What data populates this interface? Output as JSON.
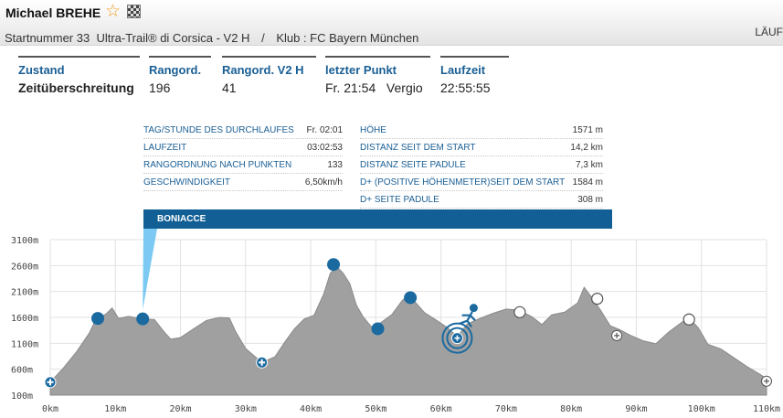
{
  "header": {
    "runner_name": "Michael BREHE",
    "favorite_icon": "star-icon",
    "checkered_flag_icon": "checkered-flag-icon",
    "bib": "Startnummer 33",
    "race": "Ultra-Trail® di Corsica - V2 H",
    "separator": "/",
    "club": "Klub : FC Bayern München",
    "lauf_tab": "LÄUF"
  },
  "summary": [
    {
      "label": "Zustand",
      "value": "Zeitüberschreitung"
    },
    {
      "label": "Rangord.",
      "value": "196"
    },
    {
      "label": "Rangord. V2 H",
      "value": "41"
    },
    {
      "label": "letzter Punkt",
      "value": "Fr. 21:54   Vergio"
    },
    {
      "label": "Laufzeit",
      "value": "22:55:55"
    }
  ],
  "tooltip": {
    "place": "BONIACCE",
    "left_rows": [
      {
        "k": "TAG/STUNDE DES DURCHLAUFES",
        "v": "Fr. 02:01"
      },
      {
        "k": "LAUFZEIT",
        "v": "03:02:53"
      },
      {
        "k": "RANGORDNUNG NACH PUNKTEN",
        "v": "133"
      },
      {
        "k": "GESCHWINDIGKEIT",
        "v": "6,50km/h"
      }
    ],
    "right_rows": [
      {
        "k": "HÖHE",
        "v": "1571 m"
      },
      {
        "k": "DISTANZ SEIT DEM START",
        "v": "14,2 km"
      },
      {
        "k": "DISTANZ SEITE PADULE",
        "v": "7,3 km"
      },
      {
        "k": "D+ (POSITIVE HÖHENMETER)SEIT DEM START",
        "v": "1584 m"
      },
      {
        "k": "D+ SEITE PADULE",
        "v": "308 m"
      }
    ]
  },
  "chart_data": {
    "type": "area",
    "title": "",
    "xlabel": "",
    "ylabel": "",
    "xlim": [
      0,
      110
    ],
    "ylim": [
      100,
      3100
    ],
    "grid": true,
    "colors": {
      "profile": "#a0a0a0",
      "passed": "#1a6aa0",
      "upcoming": "#ffffff",
      "runner": "#1a6aa0"
    },
    "y_tick_labels": [
      "3100m",
      "2600m",
      "2100m",
      "1600m",
      "1100m",
      "600m",
      "100m"
    ],
    "y_tick_values": [
      3100,
      2600,
      2100,
      1600,
      1100,
      600,
      100
    ],
    "x_tick_labels": [
      "0km",
      "10km",
      "20km",
      "30km",
      "40km",
      "50km",
      "60km",
      "70km",
      "80km",
      "90km",
      "100km",
      "110km"
    ],
    "x_tick_values": [
      0,
      10,
      20,
      30,
      40,
      50,
      60,
      70,
      80,
      90,
      100,
      110
    ],
    "profile": [
      [
        0,
        350
      ],
      [
        2,
        620
      ],
      [
        4,
        930
      ],
      [
        6,
        1300
      ],
      [
        7,
        1560
      ],
      [
        8.5,
        1660
      ],
      [
        9.5,
        1780
      ],
      [
        10.5,
        1580
      ],
      [
        12,
        1620
      ],
      [
        14.2,
        1571
      ],
      [
        16,
        1560
      ],
      [
        17.5,
        1320
      ],
      [
        18.5,
        1180
      ],
      [
        20,
        1210
      ],
      [
        22,
        1380
      ],
      [
        24,
        1540
      ],
      [
        26,
        1600
      ],
      [
        27.5,
        1590
      ],
      [
        28.5,
        1320
      ],
      [
        30,
        1000
      ],
      [
        32.5,
        730
      ],
      [
        34.5,
        840
      ],
      [
        36,
        1120
      ],
      [
        37.5,
        1380
      ],
      [
        39,
        1570
      ],
      [
        40.5,
        1640
      ],
      [
        42,
        2050
      ],
      [
        43,
        2450
      ],
      [
        44,
        2580
      ],
      [
        45,
        2450
      ],
      [
        46,
        2250
      ],
      [
        47,
        1840
      ],
      [
        48,
        1620
      ],
      [
        49.5,
        1390
      ],
      [
        51,
        1520
      ],
      [
        52.5,
        1660
      ],
      [
        54,
        1920
      ],
      [
        55,
        2040
      ],
      [
        56,
        1900
      ],
      [
        57.5,
        1690
      ],
      [
        59,
        1570
      ],
      [
        61,
        1400
      ],
      [
        62.5,
        1230
      ],
      [
        64,
        1470
      ],
      [
        66,
        1580
      ],
      [
        68,
        1680
      ],
      [
        70,
        1760
      ],
      [
        72,
        1740
      ],
      [
        74,
        1610
      ],
      [
        75.5,
        1460
      ],
      [
        77,
        1650
      ],
      [
        79,
        1700
      ],
      [
        81,
        1880
      ],
      [
        82,
        2180
      ],
      [
        83,
        2010
      ],
      [
        84.5,
        1740
      ],
      [
        86,
        1440
      ],
      [
        87.5,
        1360
      ],
      [
        89,
        1260
      ],
      [
        91,
        1150
      ],
      [
        93,
        1090
      ],
      [
        95,
        1320
      ],
      [
        96.5,
        1460
      ],
      [
        98,
        1600
      ],
      [
        99.5,
        1400
      ],
      [
        101,
        1080
      ],
      [
        103,
        990
      ],
      [
        105,
        820
      ],
      [
        107,
        650
      ],
      [
        109,
        500
      ],
      [
        110,
        420
      ]
    ],
    "checkpoints": [
      {
        "x": 0,
        "y": 350,
        "kind": "start-passed"
      },
      {
        "x": 7.3,
        "y": 1580,
        "kind": "passed"
      },
      {
        "x": 14.2,
        "y": 1571,
        "kind": "passed"
      },
      {
        "x": 32.5,
        "y": 730,
        "kind": "aid-passed"
      },
      {
        "x": 43.5,
        "y": 2620,
        "kind": "passed"
      },
      {
        "x": 50.3,
        "y": 1380,
        "kind": "passed"
      },
      {
        "x": 55.3,
        "y": 1980,
        "kind": "passed"
      },
      {
        "x": 62.5,
        "y": 1200,
        "kind": "runner"
      },
      {
        "x": 72.1,
        "y": 1700,
        "kind": "upcoming"
      },
      {
        "x": 84.0,
        "y": 1960,
        "kind": "upcoming"
      },
      {
        "x": 87.0,
        "y": 1250,
        "kind": "aid-upcoming"
      },
      {
        "x": 98.1,
        "y": 1560,
        "kind": "upcoming"
      },
      {
        "x": 110,
        "y": 370,
        "kind": "aid-upcoming"
      }
    ]
  }
}
